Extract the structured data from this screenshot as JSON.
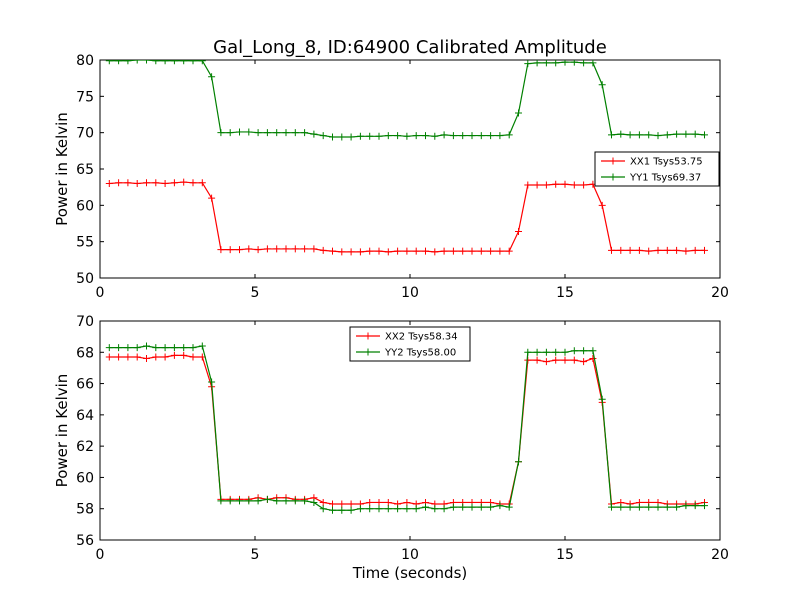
{
  "chart_data": {
    "title": "Gal_Long_8, ID:64900 Calibrated Amplitude",
    "colors": {
      "red": "#ff0000",
      "green": "#008000"
    },
    "x": [
      0.3,
      0.6,
      0.9,
      1.2,
      1.5,
      1.8,
      2.1,
      2.4,
      2.7,
      3.0,
      3.3,
      3.6,
      3.9,
      4.2,
      4.5,
      4.8,
      5.1,
      5.4,
      5.7,
      6.0,
      6.3,
      6.6,
      6.9,
      7.2,
      7.5,
      7.8,
      8.1,
      8.4,
      8.7,
      9.0,
      9.3,
      9.6,
      9.9,
      10.2,
      10.5,
      10.8,
      11.1,
      11.4,
      11.7,
      12.0,
      12.3,
      12.6,
      12.9,
      13.2,
      13.5,
      13.8,
      14.1,
      14.4,
      14.7,
      15.0,
      15.3,
      15.6,
      15.9,
      16.2,
      16.5,
      16.8,
      17.1,
      17.4,
      17.7,
      18.0,
      18.3,
      18.6,
      18.9,
      19.2,
      19.5
    ],
    "charts": [
      {
        "type": "line",
        "xlabel": "",
        "ylabel": "Power in Kelvin",
        "xlim": [
          0,
          20
        ],
        "ylim": [
          50,
          80
        ],
        "xticks": [
          0,
          5,
          10,
          15,
          20
        ],
        "yticks": [
          50,
          55,
          60,
          65,
          70,
          75,
          80
        ],
        "legend_position": "center-right",
        "series": [
          {
            "name": "XX1 Tsys53.75",
            "color": "red",
            "values": [
              63.0,
              63.1,
              63.1,
              63.0,
              63.1,
              63.1,
              63.0,
              63.1,
              63.2,
              63.1,
              63.1,
              61.0,
              53.9,
              53.9,
              53.9,
              54.0,
              53.9,
              54.0,
              54.0,
              54.0,
              54.0,
              54.0,
              54.0,
              53.8,
              53.7,
              53.6,
              53.6,
              53.6,
              53.7,
              53.7,
              53.6,
              53.7,
              53.7,
              53.7,
              53.7,
              53.6,
              53.7,
              53.7,
              53.7,
              53.7,
              53.7,
              53.7,
              53.7,
              53.7,
              56.4,
              62.8,
              62.8,
              62.8,
              62.9,
              62.9,
              62.8,
              62.8,
              62.9,
              60.0,
              53.8,
              53.8,
              53.8,
              53.8,
              53.7,
              53.8,
              53.8,
              53.8,
              53.7,
              53.8,
              53.8
            ]
          },
          {
            "name": "YY1 Tsys69.37",
            "color": "green",
            "values": [
              79.9,
              79.9,
              79.9,
              80.0,
              80.0,
              79.9,
              79.9,
              79.9,
              79.9,
              79.9,
              79.9,
              77.7,
              70.0,
              70.0,
              70.1,
              70.1,
              70.0,
              70.0,
              70.0,
              70.0,
              70.0,
              70.0,
              69.8,
              69.6,
              69.4,
              69.4,
              69.4,
              69.5,
              69.5,
              69.5,
              69.6,
              69.6,
              69.5,
              69.6,
              69.6,
              69.5,
              69.7,
              69.6,
              69.6,
              69.6,
              69.6,
              69.6,
              69.6,
              69.7,
              72.7,
              79.5,
              79.6,
              79.6,
              79.6,
              79.7,
              79.7,
              79.6,
              79.6,
              76.6,
              69.7,
              69.8,
              69.7,
              69.7,
              69.7,
              69.6,
              69.7,
              69.8,
              69.8,
              69.8,
              69.7
            ]
          }
        ]
      },
      {
        "type": "line",
        "xlabel": "Time (seconds)",
        "ylabel": "Power in Kelvin",
        "xlim": [
          0,
          20
        ],
        "ylim": [
          56,
          70
        ],
        "xticks": [
          0,
          5,
          10,
          15,
          20
        ],
        "yticks": [
          56,
          58,
          60,
          62,
          64,
          66,
          68,
          70
        ],
        "legend_position": "top-center",
        "series": [
          {
            "name": "XX2 Tsys58.34",
            "color": "red",
            "values": [
              67.7,
              67.7,
              67.7,
              67.7,
              67.6,
              67.7,
              67.7,
              67.8,
              67.8,
              67.7,
              67.7,
              65.8,
              58.6,
              58.6,
              58.6,
              58.6,
              58.7,
              58.6,
              58.7,
              58.7,
              58.6,
              58.6,
              58.7,
              58.4,
              58.3,
              58.3,
              58.3,
              58.3,
              58.4,
              58.4,
              58.4,
              58.3,
              58.4,
              58.3,
              58.4,
              58.3,
              58.3,
              58.4,
              58.4,
              58.4,
              58.4,
              58.4,
              58.3,
              58.3,
              61.0,
              67.5,
              67.5,
              67.4,
              67.5,
              67.5,
              67.5,
              67.4,
              67.6,
              64.8,
              58.3,
              58.4,
              58.3,
              58.4,
              58.4,
              58.4,
              58.3,
              58.3,
              58.3,
              58.3,
              58.4
            ]
          },
          {
            "name": "YY2 Tsys58.00",
            "color": "green",
            "values": [
              68.3,
              68.3,
              68.3,
              68.3,
              68.4,
              68.3,
              68.3,
              68.3,
              68.3,
              68.3,
              68.4,
              66.1,
              58.5,
              58.5,
              58.5,
              58.5,
              58.5,
              58.6,
              58.5,
              58.5,
              58.5,
              58.5,
              58.4,
              58.0,
              57.9,
              57.9,
              57.9,
              58.0,
              58.0,
              58.0,
              58.0,
              58.0,
              58.0,
              58.0,
              58.1,
              58.0,
              58.0,
              58.1,
              58.1,
              58.1,
              58.1,
              58.1,
              58.2,
              58.1,
              61.0,
              68.0,
              68.0,
              68.0,
              68.0,
              68.0,
              68.1,
              68.1,
              68.1,
              65.0,
              58.1,
              58.1,
              58.1,
              58.1,
              58.1,
              58.1,
              58.1,
              58.1,
              58.2,
              58.2,
              58.2
            ]
          }
        ]
      }
    ]
  }
}
